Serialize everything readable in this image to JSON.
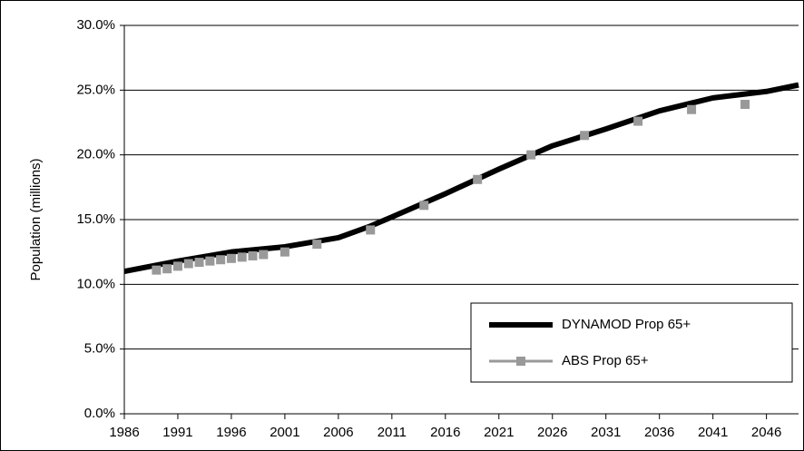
{
  "chart_data": {
    "type": "line",
    "y_label": "Population (millions)",
    "xlim": [
      1986,
      2049
    ],
    "xticks": [
      1986,
      1991,
      1996,
      2001,
      2006,
      2011,
      2016,
      2021,
      2026,
      2031,
      2036,
      2041,
      2046
    ],
    "ylim": [
      0,
      30
    ],
    "yticks": [
      {
        "value": 0,
        "label": "0.0%"
      },
      {
        "value": 5,
        "label": "5.0%"
      },
      {
        "value": 10,
        "label": "10.0%"
      },
      {
        "value": 15,
        "label": "15.0%"
      },
      {
        "value": 20,
        "label": "20.0%"
      },
      {
        "value": 25,
        "label": "25.0%"
      },
      {
        "value": 30,
        "label": "30.0%"
      }
    ],
    "grid": true,
    "legend": "lower right",
    "series": [
      {
        "name": "DYNAMOD Prop 65+",
        "color": "#000000",
        "marker": "none",
        "x": [
          1986,
          1991,
          1996,
          2001,
          2006,
          2009,
          2011,
          2016,
          2021,
          2026,
          2031,
          2036,
          2041,
          2046,
          2049
        ],
        "values": [
          11.0,
          11.8,
          12.5,
          12.9,
          13.6,
          14.5,
          15.2,
          17.0,
          18.9,
          20.7,
          22.0,
          23.4,
          24.4,
          24.9,
          25.4
        ]
      },
      {
        "name": "ABS Prop 65+",
        "color": "#999999",
        "marker": "square",
        "x": [
          1989,
          1990,
          1991,
          1992,
          1993,
          1994,
          1995,
          1996,
          1997,
          1998,
          1999,
          2001,
          2004,
          2009,
          2014,
          2019,
          2024,
          2029,
          2034,
          2039,
          2044
        ],
        "values": [
          11.1,
          11.2,
          11.4,
          11.6,
          11.7,
          11.8,
          11.9,
          12.0,
          12.1,
          12.2,
          12.3,
          12.5,
          13.1,
          14.2,
          16.1,
          18.1,
          20.0,
          21.5,
          22.6,
          23.5,
          23.9
        ]
      }
    ]
  }
}
